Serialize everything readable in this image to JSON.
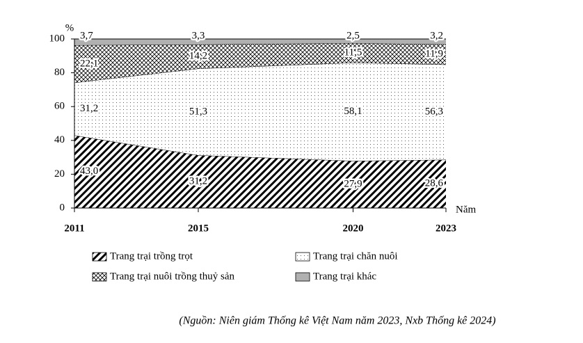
{
  "chart_data": {
    "type": "stacked-area",
    "y_label": "%",
    "x_label": "Năm",
    "x": [
      2011,
      2015,
      2020,
      2023
    ],
    "xlim": [
      2011,
      2023
    ],
    "xticks": [
      2011,
      2015,
      2020,
      2023
    ],
    "ylim": [
      0,
      100
    ],
    "yticks": [
      0,
      20,
      40,
      60,
      80,
      100
    ],
    "series": [
      {
        "name": "Trang trại trồng trọt",
        "color": "#000000",
        "pattern": "diagonal",
        "values": [
          43.0,
          31.2,
          27.9,
          28.6
        ],
        "value_labels": [
          "43,0",
          "31,2",
          "27,9",
          "28,6"
        ]
      },
      {
        "name": "Trang trại chăn nuôi",
        "color": "#000000",
        "pattern": "dots",
        "values": [
          31.2,
          51.3,
          58.1,
          56.3
        ],
        "value_labels": [
          "31,2",
          "51,3",
          "58,1",
          "56,3"
        ]
      },
      {
        "name": "Trang trại nuôi trồng thuỷ sản",
        "color": "#000000",
        "pattern": "crosshatch",
        "values": [
          22.1,
          14.2,
          11.5,
          11.9
        ],
        "value_labels": [
          "22,1",
          "14,2",
          "11,5",
          "11,9"
        ]
      },
      {
        "name": "Trang trại khác",
        "color": "#b0b0b0",
        "pattern": "solid",
        "values": [
          3.7,
          3.3,
          2.5,
          3.2
        ],
        "value_labels": [
          "3,7",
          "3,3",
          "2,5",
          "3,2"
        ]
      }
    ],
    "source": "(Nguồn: Niên giám Thống kê Việt Nam năm 2023, Nxb Thống kê 2024)"
  }
}
